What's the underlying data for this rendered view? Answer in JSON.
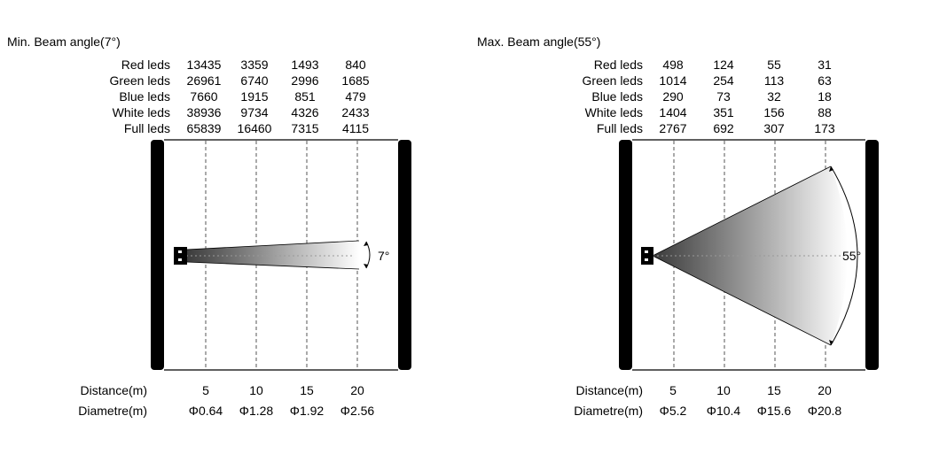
{
  "panels": [
    {
      "title": "Min.  Beam angle(7°)",
      "angle_deg": 7,
      "angle_label": "7°",
      "distances": [
        "5",
        "10",
        "15",
        "20"
      ],
      "table": [
        {
          "label": "Red leds",
          "values": [
            "13435",
            "3359",
            "1493",
            "840"
          ]
        },
        {
          "label": "Green leds",
          "values": [
            "26961",
            "6740",
            "2996",
            "1685"
          ]
        },
        {
          "label": "Blue leds",
          "values": [
            "7660",
            "1915",
            "851",
            "479"
          ]
        },
        {
          "label": "White leds",
          "values": [
            "38936",
            "9734",
            "4326",
            "2433"
          ]
        },
        {
          "label": "Full leds",
          "values": [
            "65839",
            "16460",
            "7315",
            "4115"
          ]
        }
      ],
      "distance_label": "Distance(m)",
      "diameter_label": "Diametre(m)",
      "diameters": [
        "Φ0.64",
        "Φ1.28",
        "Φ1.92",
        "Φ2.56"
      ]
    },
    {
      "title": "Max.  Beam angle(55°)",
      "angle_deg": 55,
      "angle_label": "55°",
      "distances": [
        "5",
        "10",
        "15",
        "20"
      ],
      "table": [
        {
          "label": "Red leds",
          "values": [
            "498",
            "124",
            "55",
            "31"
          ]
        },
        {
          "label": "Green leds",
          "values": [
            "1014",
            "254",
            "113",
            "63"
          ]
        },
        {
          "label": "Blue leds",
          "values": [
            "290",
            "73",
            "32",
            "18"
          ]
        },
        {
          "label": "White leds",
          "values": [
            "1404",
            "351",
            "156",
            "88"
          ]
        },
        {
          "label": "Full leds",
          "values": [
            "2767",
            "692",
            "307",
            "173"
          ]
        }
      ],
      "distance_label": "Distance(m)",
      "diameter_label": "Diametre(m)",
      "diameters": [
        "Φ5.2",
        "Φ10.4",
        "Φ15.6",
        "Φ20.8"
      ]
    }
  ]
}
